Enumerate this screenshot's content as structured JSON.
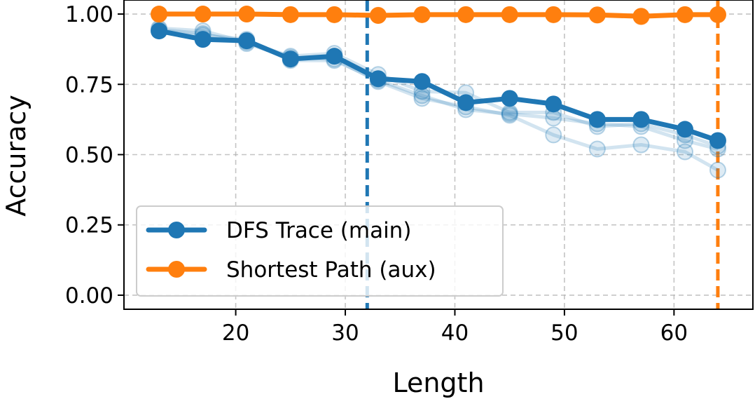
{
  "chart_data": {
    "type": "line",
    "title": "",
    "xlabel": "Length",
    "ylabel": "Accuracy",
    "xlim": [
      9.8,
      67.2
    ],
    "ylim": [
      -0.05,
      1.05
    ],
    "xticks": [
      20,
      30,
      40,
      50,
      60
    ],
    "yticks": [
      0.0,
      0.25,
      0.5,
      0.75,
      1.0
    ],
    "xtick_labels": [
      "20",
      "30",
      "40",
      "50",
      "60"
    ],
    "ytick_labels": [
      "0.00",
      "0.25",
      "0.50",
      "0.75",
      "1.00"
    ],
    "grid": true,
    "legend_position": "lower-left",
    "x": [
      13,
      17,
      21,
      25,
      29,
      33,
      37,
      41,
      45,
      49,
      53,
      57,
      61,
      64
    ],
    "series": [
      {
        "name": "DFS Trace (main)",
        "color": "#1f77b4",
        "values": [
          0.94,
          0.91,
          0.905,
          0.84,
          0.85,
          0.77,
          0.76,
          0.685,
          0.7,
          0.68,
          0.625,
          0.625,
          0.59,
          0.55
        ],
        "faint_runs": [
          [
            0.95,
            0.94,
            0.9,
            0.85,
            0.86,
            0.785,
            0.725,
            0.72,
            0.65,
            0.65,
            0.6,
            0.61,
            0.57,
            0.53
          ],
          [
            0.945,
            0.93,
            0.895,
            0.845,
            0.84,
            0.76,
            0.7,
            0.67,
            0.64,
            0.57,
            0.52,
            0.535,
            0.51,
            0.445
          ],
          [
            0.94,
            0.925,
            0.91,
            0.835,
            0.835,
            0.765,
            0.71,
            0.66,
            0.645,
            0.63,
            0.61,
            0.6,
            0.55,
            0.52
          ]
        ]
      },
      {
        "name": "Shortest Path (aux)",
        "color": "#ff7f0e",
        "values": [
          1.0,
          1.0,
          1.0,
          0.998,
          0.998,
          0.995,
          0.998,
          0.998,
          0.998,
          0.998,
          0.997,
          0.992,
          0.998,
          0.998
        ],
        "faint_runs": [
          [
            0.998,
            1.0,
            1.0,
            0.998,
            0.997,
            0.996,
            0.998,
            0.998,
            0.998,
            0.997,
            0.996,
            0.99,
            0.997,
            0.997
          ]
        ]
      }
    ],
    "vlines": [
      {
        "x": 32,
        "color": "#1f77b4",
        "style": "dashed"
      },
      {
        "x": 64,
        "color": "#ff7f0e",
        "style": "dashed"
      }
    ]
  }
}
